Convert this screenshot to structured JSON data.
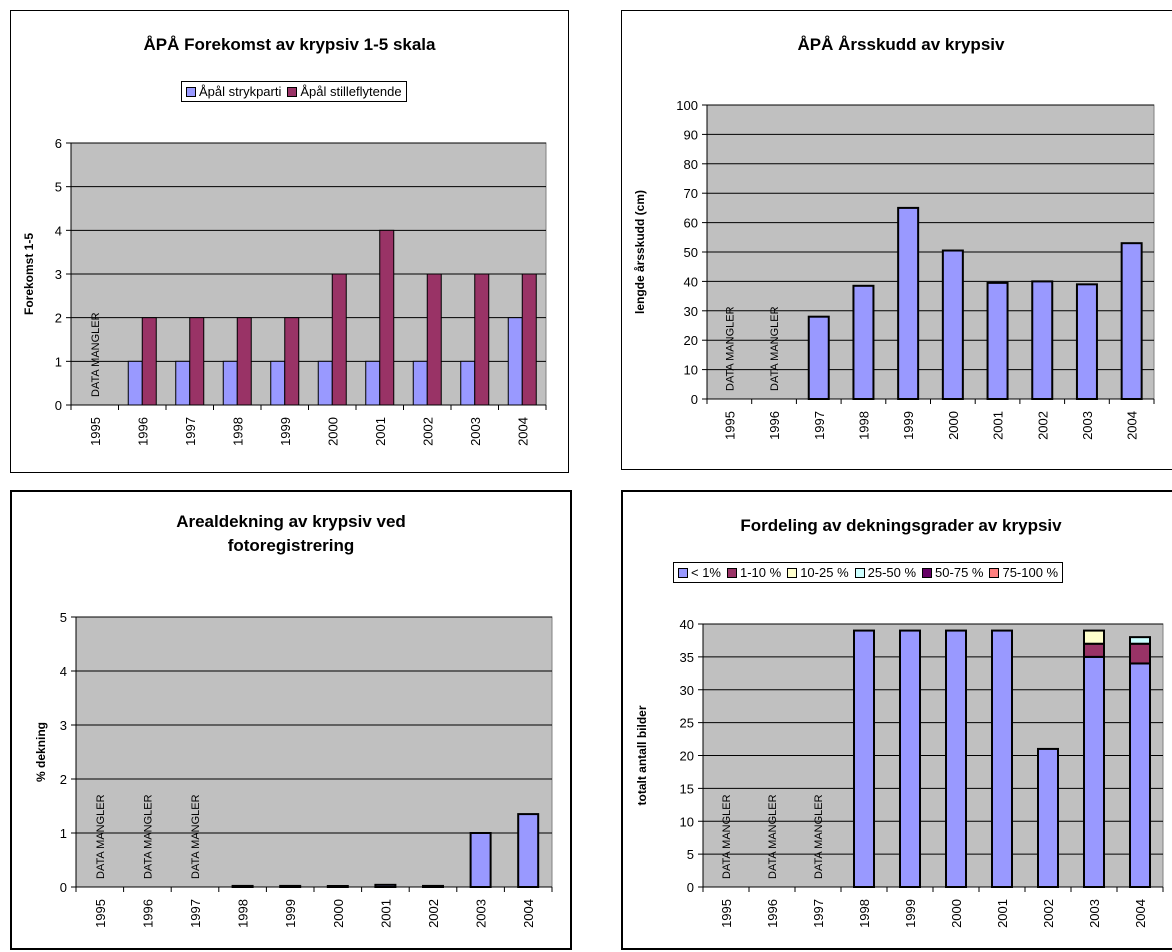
{
  "chart_data": [
    {
      "type": "bar",
      "title": "ÅPÅ Forekomst av krypsiv 1-5 skala",
      "ylabel": "Forekomst 1-5",
      "xlabel": "",
      "categories": [
        "1995",
        "1996",
        "1997",
        "1998",
        "1999",
        "2000",
        "2001",
        "2002",
        "2003",
        "2004"
      ],
      "ylim": [
        0,
        6
      ],
      "yticks": [
        0,
        1,
        2,
        3,
        4,
        5,
        6
      ],
      "series": [
        {
          "name": "Åpål strykparti",
          "color": "#9999ff",
          "values": [
            null,
            1,
            1,
            1,
            1,
            1,
            1,
            1,
            1,
            2
          ]
        },
        {
          "name": "Åpål stilleflytende",
          "color": "#993366",
          "values": [
            null,
            2,
            2,
            2,
            2,
            3,
            4,
            3,
            3,
            3
          ]
        }
      ],
      "annotations": [
        {
          "category": "1995",
          "text": "DATA MANGLER"
        }
      ],
      "legend": "top",
      "grid": true
    },
    {
      "type": "bar",
      "title": "ÅPÅ Årsskudd av krypsiv",
      "ylabel": "lengde årsskudd (cm)",
      "xlabel": "",
      "categories": [
        "1995",
        "1996",
        "1997",
        "1998",
        "1999",
        "2000",
        "2001",
        "2002",
        "2003",
        "2004"
      ],
      "ylim": [
        0,
        100
      ],
      "yticks": [
        0,
        10,
        20,
        30,
        40,
        50,
        60,
        70,
        80,
        90,
        100
      ],
      "series": [
        {
          "color": "#9999ff",
          "values": [
            null,
            null,
            28,
            38.5,
            65,
            50.5,
            39.5,
            40,
            39,
            53
          ]
        }
      ],
      "annotations": [
        {
          "category": "1995",
          "text": "DATA MANGLER"
        },
        {
          "category": "1996",
          "text": "DATA MANGLER"
        }
      ],
      "grid": true
    },
    {
      "type": "bar",
      "title": "Arealdekning av krypsiv ved fotoregistrering",
      "title_lines": [
        "Arealdekning av krypsiv ved",
        "fotoregistrering"
      ],
      "ylabel": "% dekning",
      "xlabel": "",
      "categories": [
        "1995",
        "1996",
        "1997",
        "1998",
        "1999",
        "2000",
        "2001",
        "2002",
        "2003",
        "2004"
      ],
      "ylim": [
        0,
        5
      ],
      "yticks": [
        0,
        1,
        2,
        3,
        4,
        5
      ],
      "series": [
        {
          "color": "#9999ff",
          "values": [
            null,
            null,
            null,
            0.02,
            0.02,
            0.01,
            0.04,
            0.02,
            1.0,
            1.35
          ]
        }
      ],
      "annotations": [
        {
          "category": "1995",
          "text": "DATA MANGLER"
        },
        {
          "category": "1996",
          "text": "DATA MANGLER"
        },
        {
          "category": "1997",
          "text": "DATA MANGLER"
        }
      ],
      "grid": true
    },
    {
      "type": "bar",
      "stacked": true,
      "title": "Fordeling av dekningsgrader av krypsiv",
      "ylabel": "totalt antall bilder",
      "xlabel": "",
      "categories": [
        "1995",
        "1996",
        "1997",
        "1998",
        "1999",
        "2000",
        "2001",
        "2002",
        "2003",
        "2004"
      ],
      "ylim": [
        0,
        40
      ],
      "yticks": [
        0,
        5,
        10,
        15,
        20,
        25,
        30,
        35,
        40
      ],
      "series": [
        {
          "name": "< 1%",
          "color": "#9999ff",
          "values": [
            null,
            null,
            null,
            39,
            39,
            39,
            39,
            21,
            35,
            34
          ]
        },
        {
          "name": "1-10 %",
          "color": "#993366",
          "values": [
            null,
            null,
            null,
            0,
            0,
            0,
            0,
            0,
            2,
            3
          ]
        },
        {
          "name": "10-25 %",
          "color": "#ffffcc",
          "values": [
            null,
            null,
            null,
            0,
            0,
            0,
            0,
            0,
            2,
            0
          ]
        },
        {
          "name": "25-50 %",
          "color": "#ccffff",
          "values": [
            null,
            null,
            null,
            0,
            0,
            0,
            0,
            0,
            0,
            1
          ]
        },
        {
          "name": "50-75 %",
          "color": "#660066",
          "values": [
            null,
            null,
            null,
            0,
            0,
            0,
            0,
            0,
            0,
            0
          ]
        },
        {
          "name": "75-100 %",
          "color": "#ff8080",
          "values": [
            null,
            null,
            null,
            0,
            0,
            0,
            0,
            0,
            0,
            0
          ]
        }
      ],
      "annotations": [
        {
          "category": "1995",
          "text": "DATA MANGLER"
        },
        {
          "category": "1996",
          "text": "DATA MANGLER"
        },
        {
          "category": "1997",
          "text": "DATA MANGLER"
        }
      ],
      "legend": "top",
      "grid": true
    }
  ],
  "style": {
    "plot_bg": "#c0c0c0",
    "grid_color": "#000000"
  }
}
